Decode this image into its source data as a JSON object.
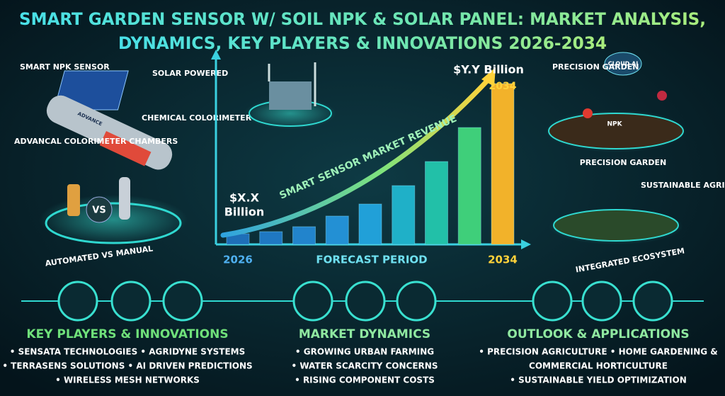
{
  "header": {
    "title_line1": "SMART GARDEN SENSOR W/ SOIL NPK & SOLAR PANEL: MARKET ANALYSIS,",
    "title_line2": "DYNAMICS, KEY PLAYERS & INNOVATIONS 2026-2034"
  },
  "left_panel": {
    "sensor_label": "SMART NPK SENSOR",
    "solar_label": "SOLAR POWERED",
    "colorimeter_label": "CHEMICAL COLORIMETER",
    "chambers_label": "ADVANCAL COLORIMETER CHAMBERS",
    "probe_label": "ADVANCE",
    "vs_label": "VS",
    "caption": "AUTOMATED VS MANUAL"
  },
  "chart_data": {
    "type": "bar",
    "categories": [
      "2026",
      null,
      null,
      null,
      null,
      null,
      null,
      null,
      "2034"
    ],
    "values": [
      15,
      18,
      25,
      40,
      57,
      83,
      117,
      165,
      227
    ],
    "colors": [
      "#1e6fb8",
      "#1f78c2",
      "#2284cc",
      "#2390d4",
      "#21a0d8",
      "#1fb0c8",
      "#22c0a8",
      "#3fcf7a",
      "#f2b22a"
    ],
    "ylim": [
      0,
      240
    ],
    "start_label_line1": "$X.X",
    "start_label_line2": "Billion",
    "end_label": "$Y.Y Billion",
    "end_bar_label": "2034",
    "trend_label": "SMART SENSOR MARKET REVENUE",
    "x_axis_label": "FORECAST PERIOD"
  },
  "right_panel": {
    "top_label": "PRECISION GARDEN",
    "cloud_label": "CLOUD AI",
    "npk_label": "NPK",
    "top_caption": "PRECISION GARDEN",
    "bottom_label": "SUSTAINABLE AGRI",
    "bottom_caption": "INTEGRATED ECOSYSTEM"
  },
  "sections": [
    {
      "title": "KEY PLAYERS & INNOVATIONS",
      "lines": [
        "• SENSATA TECHNOLOGIES  • AGRIDYNE SYSTEMS",
        "• TERRASENS SOLUTIONS  • AI DRIVEN PREDICTIONS",
        "• WIRELESS MESH NETWORKS"
      ]
    },
    {
      "title": "MARKET DYNAMICS",
      "lines": [
        "• GROWING URBAN FARMING",
        "• WATER SCARCITY CONCERNS",
        "• RISING COMPONENT COSTS"
      ]
    },
    {
      "title": "OUTLOOK & APPLICATIONS",
      "lines": [
        "• PRECISION AGRICULTURE • HOME GARDENING &",
        "COMMERCIAL HORTICULTURE",
        "• SUSTAINABLE YIELD OPTIMIZATION"
      ]
    }
  ]
}
